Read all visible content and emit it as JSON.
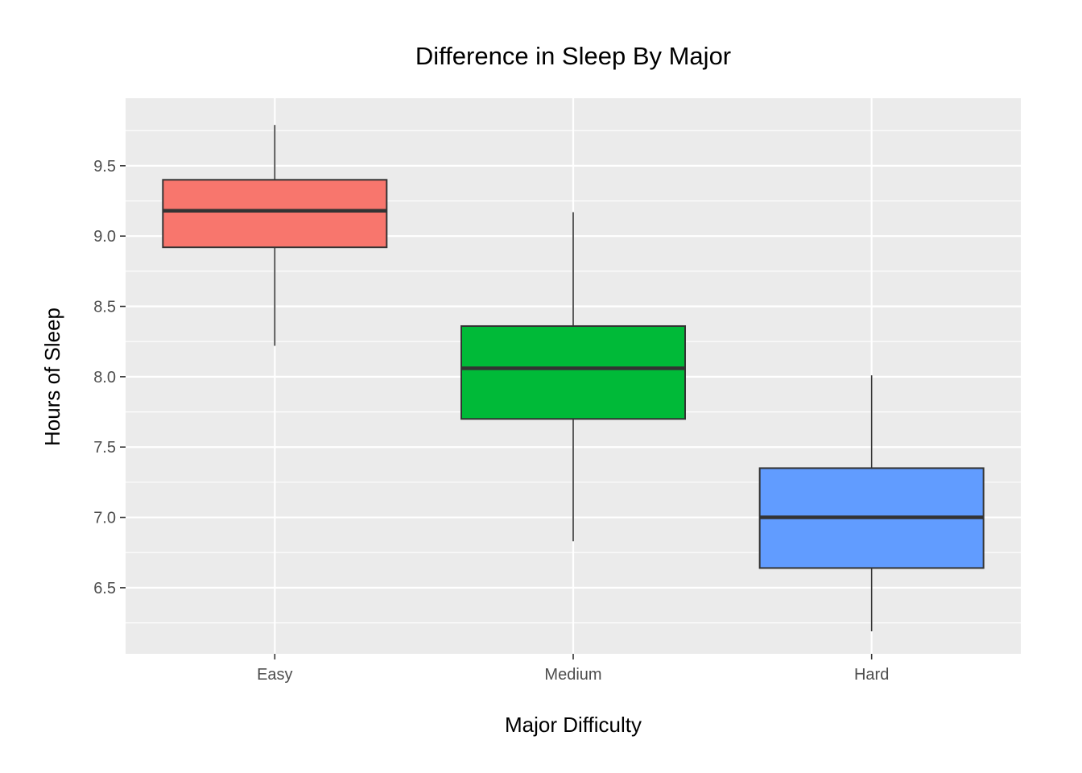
{
  "chart_data": {
    "type": "boxplot",
    "title": "Difference in Sleep By Major",
    "xlabel": "Major Difficulty",
    "ylabel": "Hours of Sleep",
    "ylim": [
      6.03,
      9.98
    ],
    "yticks": [
      "6.5",
      "7.0",
      "7.5",
      "8.0",
      "8.5",
      "9.0",
      "9.5"
    ],
    "ytick_values": [
      6.5,
      7.0,
      7.5,
      8.0,
      8.5,
      9.0,
      9.5
    ],
    "categories": [
      "Easy",
      "Medium",
      "Hard"
    ],
    "boxes": [
      {
        "category": "Easy",
        "min": 8.22,
        "q1": 8.92,
        "median": 9.18,
        "q3": 9.4,
        "max": 9.79,
        "color": "#F8766D"
      },
      {
        "category": "Medium",
        "min": 6.83,
        "q1": 7.7,
        "median": 8.06,
        "q3": 8.36,
        "max": 9.17,
        "color": "#00BA38"
      },
      {
        "category": "Hard",
        "min": 6.19,
        "q1": 6.64,
        "median": 7.0,
        "q3": 7.35,
        "max": 8.01,
        "color": "#619CFF"
      }
    ],
    "grid": true,
    "legend": "none",
    "panel_background": "#EBEBEB"
  }
}
